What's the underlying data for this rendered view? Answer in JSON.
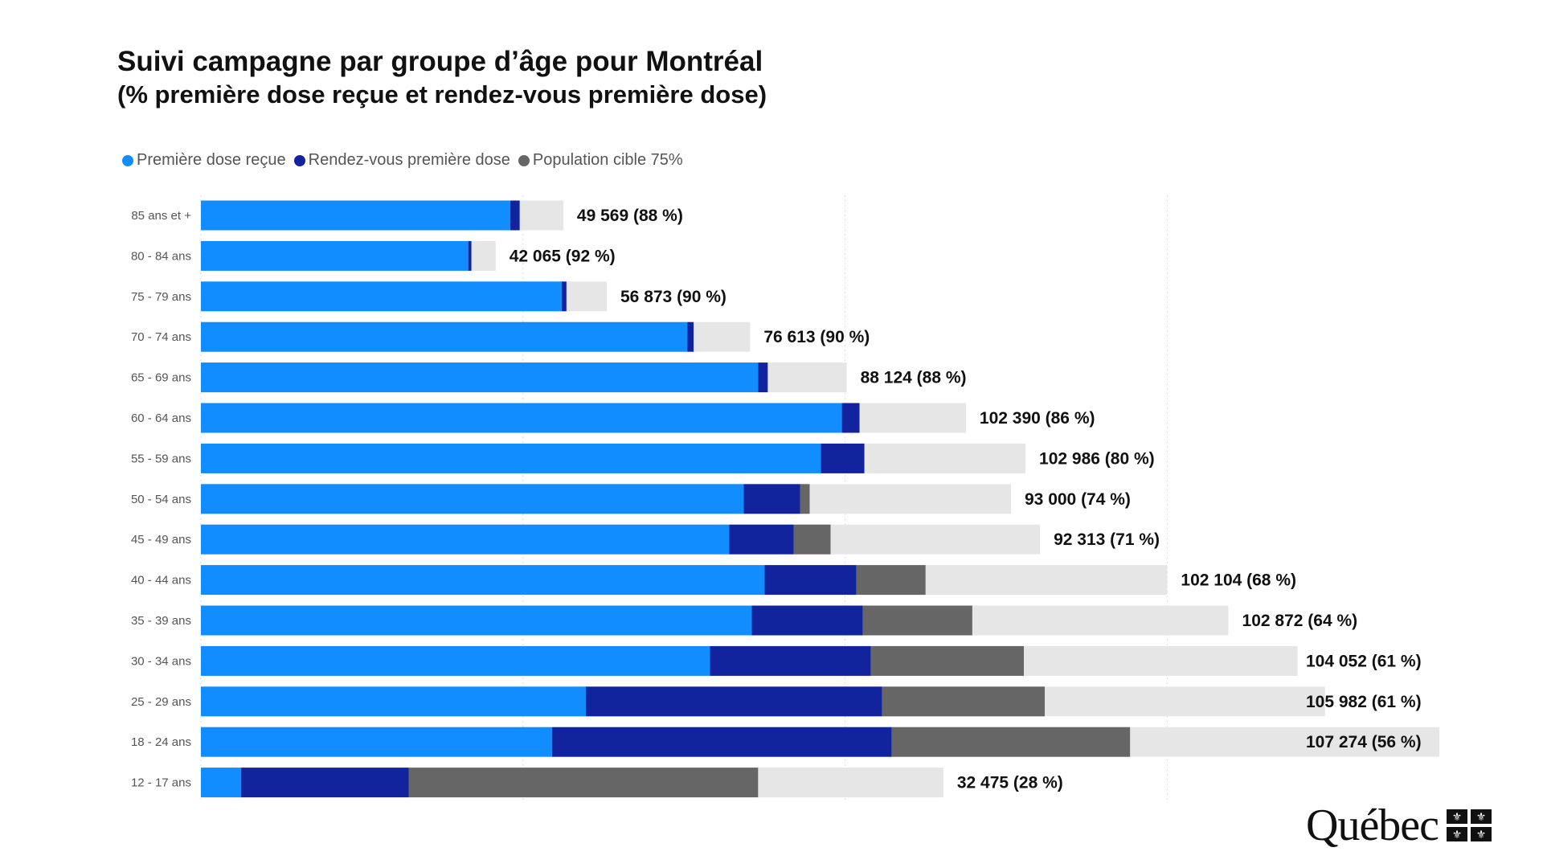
{
  "chart_data": {
    "type": "bar",
    "orientation": "horizontal",
    "stacked": true,
    "title": "Suivi campagne par groupe d’âge pour Montréal",
    "subtitle": "(% première dose reçue et rendez-vous première dose)",
    "legend_position": "top-left",
    "grid": true,
    "xlim": [
      0,
      80000
    ],
    "gridlines": [
      0,
      20000,
      40000,
      60000
    ],
    "categories": [
      "85 ans et +",
      "80 - 84 ans",
      "75 - 79 ans",
      "70 - 74 ans",
      "65 - 69 ans",
      "60 - 64 ans",
      "55 - 59 ans",
      "50 - 54 ans",
      "45 - 49 ans",
      "40 - 44 ans",
      "35 - 39 ans",
      "30 - 34 ans",
      "25 - 29 ans",
      "18 - 24 ans",
      "12 - 17 ans"
    ],
    "series": [
      {
        "name": "Première dose reçue",
        "color": "#118DFF",
        "values": [
          19200,
          16600,
          22400,
          30200,
          34600,
          39800,
          38500,
          33700,
          32800,
          35000,
          34200,
          31600,
          23900,
          21800,
          2500
        ]
      },
      {
        "name": "Rendez-vous première dose",
        "color": "#12239E",
        "values": [
          600,
          200,
          300,
          400,
          600,
          1100,
          2700,
          3500,
          4000,
          5700,
          6900,
          10000,
          18400,
          21100,
          10400
        ]
      },
      {
        "name": "Population cible 75%",
        "color": "#666666",
        "values": [
          0,
          0,
          0,
          0,
          0,
          0,
          0,
          600,
          2300,
          4300,
          6800,
          9500,
          10100,
          14800,
          21700
        ]
      },
      {
        "name": "Population restante",
        "color": "#E6E6E6",
        "legend": false,
        "values": [
          2700,
          1500,
          2500,
          3500,
          4900,
          6600,
          10000,
          12500,
          13000,
          15000,
          15900,
          17000,
          17400,
          19200,
          11500
        ]
      }
    ],
    "data_labels": [
      "49 569 (88 %)",
      "42 065 (92 %)",
      "56 873 (90 %)",
      "76 613 (90 %)",
      "88 124 (88 %)",
      "102 390 (86 %)",
      "102 986 (80 %)",
      "93 000 (74 %)",
      "92 313  (71 %)",
      "102 104 (68 %)",
      "102 872 (64 %)",
      "104 052 (61 %)",
      "105 982 (61 %)",
      "107 274 (56 %)",
      "32 475 (28 %)"
    ]
  },
  "logo": {
    "text": "Québec"
  }
}
